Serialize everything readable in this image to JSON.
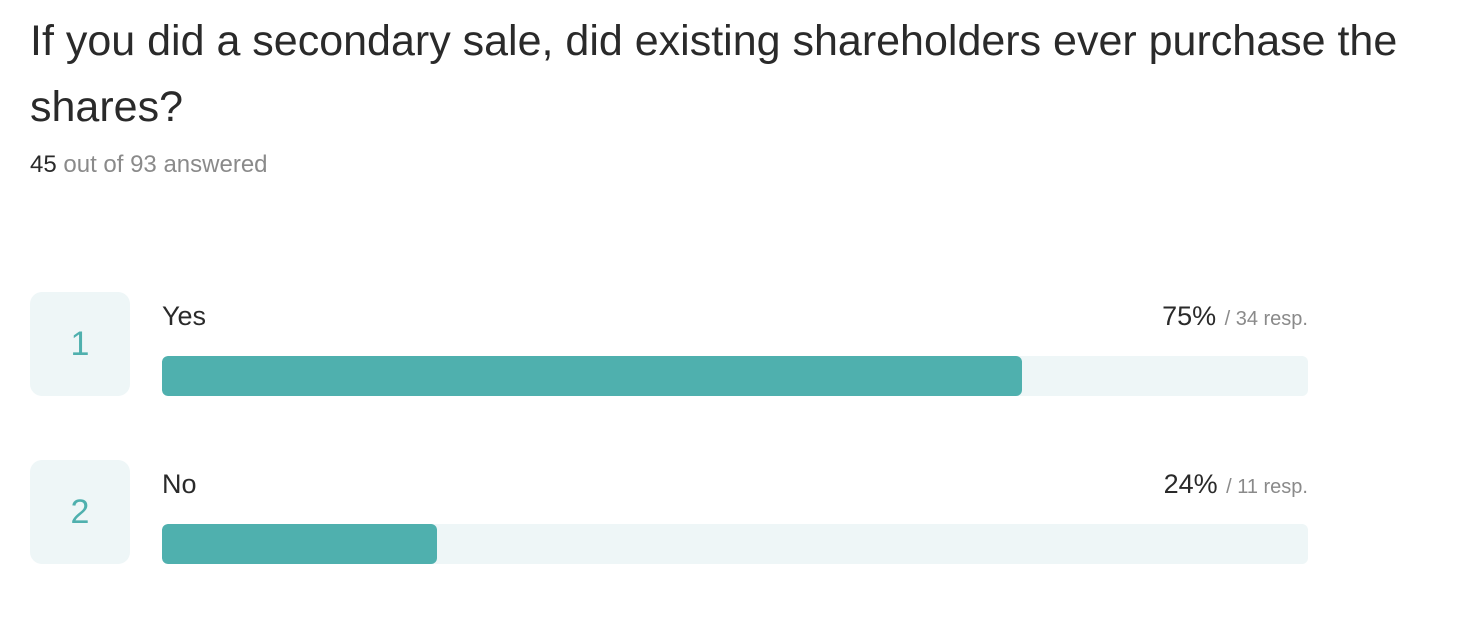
{
  "question": {
    "title": "If you did a secondary sale, did existing shareholders ever purchase the shares?",
    "answered": "45",
    "answered_suffix": " out of 93 answered"
  },
  "chart_data": {
    "type": "bar",
    "orientation": "horizontal",
    "categories": [
      "Yes",
      "No"
    ],
    "series": [
      {
        "values": [
          75,
          24
        ]
      }
    ],
    "responses": [
      34,
      11
    ],
    "ylim": [
      0,
      100
    ],
    "bar_color": "#4fb0ae",
    "track_color": "#eef6f7"
  },
  "options": [
    {
      "index": "1",
      "label": "Yes",
      "percent_text": "75%",
      "resp_text": "/ 34 resp.",
      "percent": 75
    },
    {
      "index": "2",
      "label": "No",
      "percent_text": "24%",
      "resp_text": "/ 11 resp.",
      "percent": 24
    }
  ]
}
